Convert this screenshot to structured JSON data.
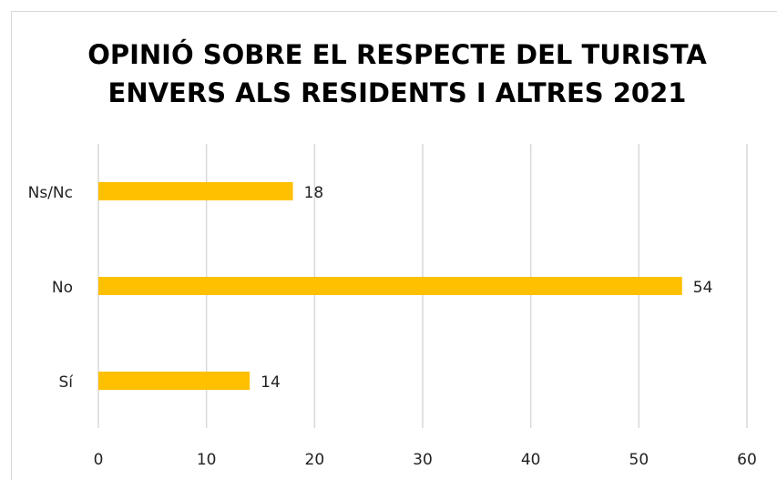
{
  "chart_data": {
    "type": "barh",
    "title": [
      "OPINIÓ SOBRE EL RESPECTE DEL TURISTA",
      "ENVERS ALS RESIDENTS I ALTRES 2021"
    ],
    "categories": [
      "Sí",
      "No",
      "Ns/Nc"
    ],
    "values": [
      14,
      54,
      18
    ],
    "color": "#ffc000",
    "xlim": [
      0,
      60
    ],
    "xticks": [
      0,
      10,
      20,
      30,
      40,
      50,
      60
    ],
    "grid": true
  }
}
